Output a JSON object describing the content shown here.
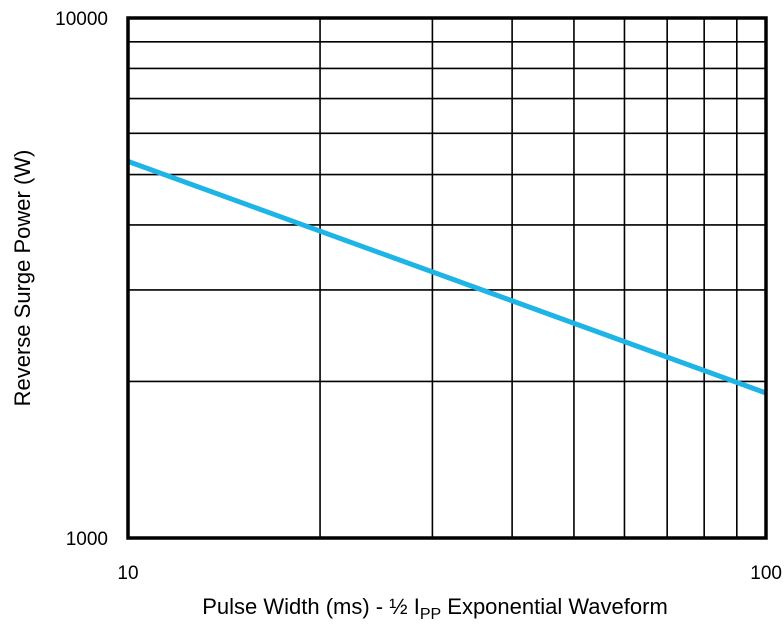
{
  "chart_data": {
    "type": "line",
    "title": "",
    "xlabel": "Pulse Width (ms) - ½ I",
    "xlabel_subscript": "PP",
    "xlabel_suffix": " Exponential Waveform",
    "ylabel": "Reverse Surge Power (W)",
    "xscale": "log",
    "yscale": "log",
    "xlim": [
      10,
      100
    ],
    "ylim": [
      1000,
      10000
    ],
    "x_tick_labels": [
      "10",
      "100"
    ],
    "y_tick_labels": [
      "1000",
      "10000"
    ],
    "grid": true,
    "legend": "none",
    "series": [
      {
        "x": [
          10,
          100
        ],
        "y": [
          5300,
          1900
        ],
        "color": "#1eb4e6"
      }
    ]
  }
}
